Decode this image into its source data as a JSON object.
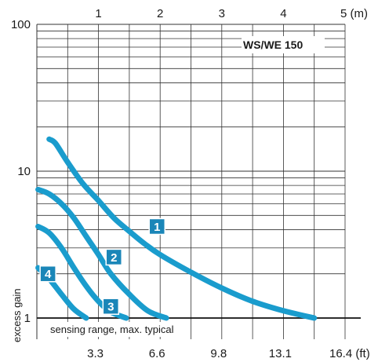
{
  "chart_data": {
    "type": "line",
    "title": "WS/WE 150",
    "ylabel": "excess gain",
    "y_scale": "log",
    "ylim": [
      1,
      100
    ],
    "y_ticks": [
      "1",
      "10",
      "100"
    ],
    "x_range_m": [
      0,
      5
    ],
    "x_top_ticks": [
      "1",
      "2",
      "3",
      "4",
      "5 (m)"
    ],
    "x_top_tick_values": [
      1,
      2,
      3,
      4,
      5
    ],
    "x_bottom_ticks": [
      "3.3",
      "6.6",
      "9.8",
      "13.1",
      "16.4 (ft)"
    ],
    "x_bottom_tick_values": [
      1,
      2,
      3,
      4,
      5
    ],
    "baseline_label": "sensing range, max. typical",
    "grid": true,
    "line_color": "#1a9ccd",
    "series": [
      {
        "name": "1",
        "x": [
          0.2,
          0.3,
          0.5,
          0.75,
          1.0,
          1.25,
          1.5,
          1.75,
          2.0,
          2.5,
          3.0,
          3.5,
          4.0,
          4.5
        ],
        "y": [
          16.5,
          15.5,
          11.5,
          8.2,
          6.3,
          4.8,
          3.9,
          3.2,
          2.7,
          2.05,
          1.6,
          1.3,
          1.12,
          1.0
        ]
      },
      {
        "name": "2",
        "x": [
          0.02,
          0.2,
          0.4,
          0.6,
          0.8,
          1.0,
          1.2,
          1.5,
          1.8,
          2.1
        ],
        "y": [
          7.5,
          7.0,
          6.0,
          4.8,
          3.6,
          2.7,
          2.0,
          1.45,
          1.12,
          1.0
        ]
      },
      {
        "name": "3",
        "x": [
          0.02,
          0.2,
          0.4,
          0.6,
          0.8,
          1.0,
          1.2,
          1.45
        ],
        "y": [
          4.2,
          3.8,
          3.0,
          2.2,
          1.65,
          1.3,
          1.1,
          1.0
        ]
      },
      {
        "name": "4",
        "x": [
          0.02,
          0.2,
          0.4,
          0.6,
          0.8
        ],
        "y": [
          2.2,
          1.85,
          1.45,
          1.15,
          1.0
        ]
      }
    ],
    "series_labels": [
      {
        "text": "1",
        "x": 1.95,
        "y": 4.2
      },
      {
        "text": "2",
        "x": 1.25,
        "y": 2.6
      },
      {
        "text": "3",
        "x": 1.2,
        "y": 1.2
      },
      {
        "text": "4",
        "x": 0.18,
        "y": 2.0
      }
    ]
  }
}
